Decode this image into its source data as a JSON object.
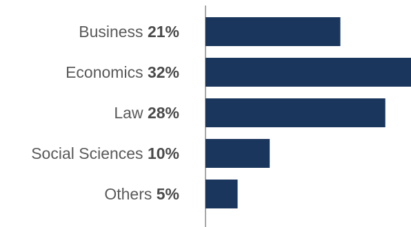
{
  "chart_data": {
    "type": "bar",
    "orientation": "horizontal",
    "title": "",
    "xlabel": "",
    "ylabel": "",
    "categories": [
      "Business",
      "Economics",
      "Law",
      "Social Sciences",
      "Others"
    ],
    "values": [
      21,
      32,
      28,
      10,
      5
    ],
    "value_labels": [
      "21%",
      "32%",
      "28%",
      "10%",
      "5%"
    ],
    "xlim": [
      0,
      32
    ],
    "grid": false,
    "legend": "none",
    "colors": {
      "bar": "#1b365d",
      "label": "#595959",
      "value_label": "#4a4a4a",
      "axis": "#8c8c8c"
    }
  }
}
